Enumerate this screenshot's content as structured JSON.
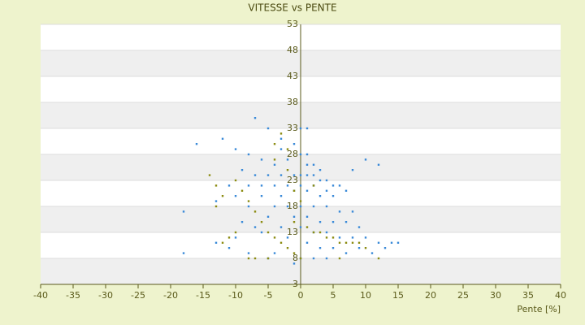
{
  "chart_data": {
    "type": "scatter",
    "title": "VITESSE vs PENTE",
    "x_label": "Pente [%]",
    "xlim": [
      -40,
      40
    ],
    "xticks": [
      -40,
      -35,
      -30,
      -25,
      -20,
      -15,
      -10,
      -5,
      0,
      5,
      10,
      15,
      20,
      25,
      30,
      35,
      40
    ],
    "ylim": [
      3,
      53
    ],
    "yticks": [
      3,
      8,
      13,
      18,
      23,
      28,
      33,
      38,
      43,
      48,
      53
    ],
    "grid": true,
    "series": [
      {
        "color": "#3a8ad8",
        "x": [
          -7,
          -5,
          -3,
          0,
          1,
          -16,
          -12,
          -10,
          -8,
          -6,
          -4,
          -2,
          1,
          2,
          3,
          -9,
          -7,
          -5,
          -3,
          -1,
          0,
          1,
          2,
          3,
          4,
          5,
          6,
          7,
          -11,
          -8,
          -6,
          -4,
          -2,
          0,
          2,
          4,
          -1,
          1,
          3,
          5,
          -3,
          -6,
          -10,
          -13,
          -18,
          -8,
          -4,
          -2,
          0,
          2,
          4,
          6,
          8,
          -5,
          -1,
          1,
          3,
          5,
          7,
          9,
          -9,
          -3,
          0,
          2,
          4,
          6,
          8,
          10,
          12,
          14,
          15,
          -13,
          -10,
          -6,
          -2,
          1,
          3,
          5,
          -18,
          -8,
          -4,
          0,
          2,
          -1,
          4,
          7,
          11,
          12,
          10,
          8,
          -3,
          -1,
          0,
          1,
          -7,
          -11,
          9,
          13,
          -5
        ],
        "values": [
          35,
          33,
          31,
          33,
          33,
          30,
          31,
          29,
          28,
          27,
          26,
          27,
          26,
          26,
          25,
          25,
          24,
          24,
          24,
          24,
          24,
          24,
          24,
          23,
          23,
          22,
          22,
          21,
          22,
          22,
          22,
          22,
          22,
          22,
          22,
          21,
          21,
          21,
          20,
          20,
          20,
          20,
          20,
          19,
          17,
          18,
          18,
          18,
          18,
          18,
          18,
          17,
          17,
          16,
          16,
          16,
          15,
          15,
          15,
          14,
          15,
          14,
          14,
          13,
          13,
          12,
          12,
          12,
          11,
          11,
          11,
          11,
          12,
          13,
          12,
          11,
          10,
          10,
          9,
          9,
          9,
          8,
          8,
          7,
          8,
          9,
          9,
          26,
          27,
          25,
          29,
          30,
          28,
          28,
          14,
          10,
          10,
          10,
          8
        ]
      },
      {
        "color": "#8c8c12",
        "x": [
          -3,
          -4,
          -2,
          -14,
          -13,
          -12,
          -13,
          -10,
          -9,
          -8,
          -7,
          -6,
          -5,
          -4,
          -3,
          -2,
          -1,
          0,
          1,
          2,
          3,
          4,
          5,
          6,
          7,
          8,
          9,
          10,
          -10,
          -11,
          -12,
          -8,
          -7,
          -5,
          0,
          -1,
          -2,
          -4,
          2,
          12,
          -1,
          6
        ],
        "values": [
          32,
          30,
          29,
          24,
          22,
          20,
          18,
          23,
          21,
          19,
          17,
          15,
          13,
          12,
          11,
          10,
          9,
          8,
          14,
          13,
          13,
          12,
          12,
          11,
          11,
          11,
          11,
          10,
          13,
          12,
          11,
          8,
          8,
          8,
          19,
          21,
          25,
          27,
          22,
          8,
          15,
          8
        ]
      }
    ]
  }
}
